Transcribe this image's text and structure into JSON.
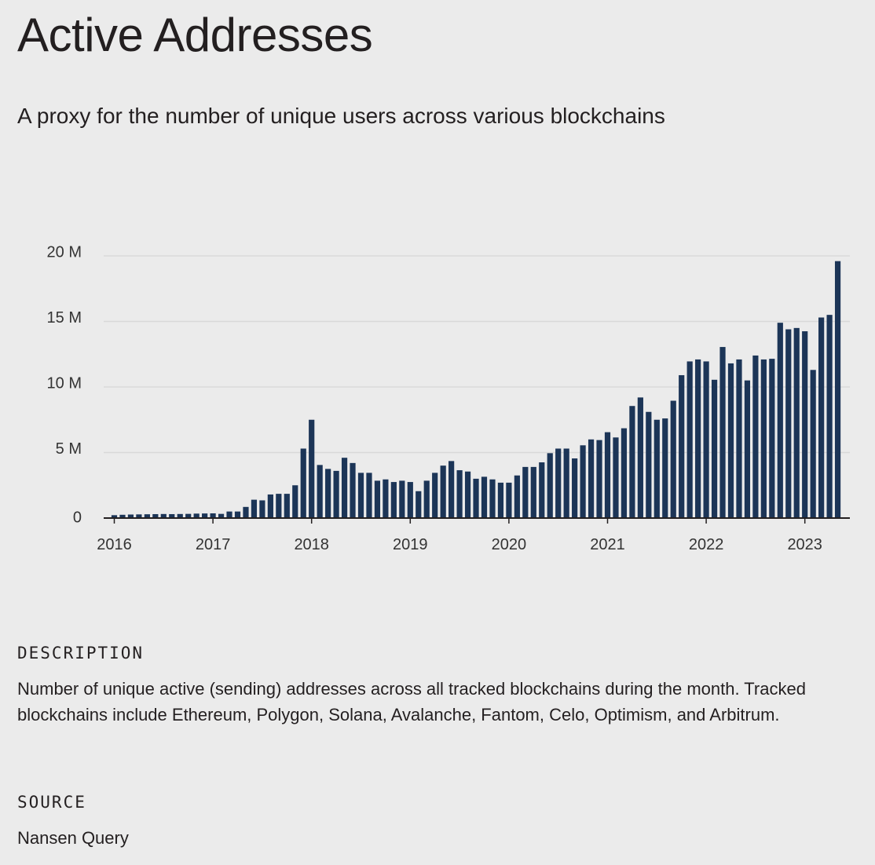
{
  "header": {
    "title": "Active Addresses",
    "subtitle": "A proxy for the number of unique users across various blockchains"
  },
  "chart_data": {
    "type": "bar",
    "title": "Active Addresses",
    "subtitle": "A proxy for the number of unique users across various blockchains",
    "xlabel": "",
    "ylabel": "",
    "bar_color": "#1c3557",
    "grid": true,
    "y_ticks": [
      "0",
      "5 M",
      "10 M",
      "15 M",
      "20 M"
    ],
    "y_tick_values": [
      0,
      5000000,
      10000000,
      15000000,
      20000000
    ],
    "ylim": [
      0,
      20000000
    ],
    "x_ticks": [
      "2016",
      "2017",
      "2018",
      "2019",
      "2020",
      "2021",
      "2022",
      "2023"
    ],
    "x_tick_dates": [
      "2016-01",
      "2017-01",
      "2018-01",
      "2019-01",
      "2020-01",
      "2021-01",
      "2022-01",
      "2023-01"
    ],
    "x_range": [
      "2015-12",
      "2023-06"
    ],
    "categories": [
      "2016-01",
      "2016-02",
      "2016-03",
      "2016-04",
      "2016-05",
      "2016-06",
      "2016-07",
      "2016-08",
      "2016-09",
      "2016-10",
      "2016-11",
      "2016-12",
      "2017-01",
      "2017-02",
      "2017-03",
      "2017-04",
      "2017-05",
      "2017-06",
      "2017-07",
      "2017-08",
      "2017-09",
      "2017-10",
      "2017-11",
      "2017-12",
      "2018-01",
      "2018-02",
      "2018-03",
      "2018-04",
      "2018-05",
      "2018-06",
      "2018-07",
      "2018-08",
      "2018-09",
      "2018-10",
      "2018-11",
      "2018-12",
      "2019-01",
      "2019-02",
      "2019-03",
      "2019-04",
      "2019-05",
      "2019-06",
      "2019-07",
      "2019-08",
      "2019-09",
      "2019-10",
      "2019-11",
      "2019-12",
      "2020-01",
      "2020-02",
      "2020-03",
      "2020-04",
      "2020-05",
      "2020-06",
      "2020-07",
      "2020-08",
      "2020-09",
      "2020-10",
      "2020-11",
      "2020-12",
      "2021-01",
      "2021-02",
      "2021-03",
      "2021-04",
      "2021-05",
      "2021-06",
      "2021-07",
      "2021-08",
      "2021-09",
      "2021-10",
      "2021-11",
      "2021-12",
      "2022-01",
      "2022-02",
      "2022-03",
      "2022-04",
      "2022-05",
      "2022-06",
      "2022-07",
      "2022-08",
      "2022-09",
      "2022-10",
      "2022-11",
      "2022-12",
      "2023-01",
      "2023-02",
      "2023-03",
      "2023-04",
      "2023-05"
    ],
    "values": [
      220000,
      250000,
      270000,
      280000,
      290000,
      300000,
      310000,
      300000,
      310000,
      320000,
      340000,
      350000,
      360000,
      320000,
      500000,
      500000,
      850000,
      1400000,
      1350000,
      1800000,
      1850000,
      1850000,
      2500000,
      5300000,
      7500000,
      4050000,
      3750000,
      3600000,
      4600000,
      4200000,
      3450000,
      3450000,
      2850000,
      2950000,
      2750000,
      2850000,
      2750000,
      2050000,
      2850000,
      3450000,
      4000000,
      4350000,
      3650000,
      3550000,
      3000000,
      3150000,
      2950000,
      2700000,
      2700000,
      3250000,
      3900000,
      3900000,
      4250000,
      4950000,
      5300000,
      5300000,
      4550000,
      5550000,
      6000000,
      5950000,
      6550000,
      6150000,
      6850000,
      8550000,
      9200000,
      8100000,
      7500000,
      7600000,
      8950000,
      10900000,
      11950000,
      12100000,
      11950000,
      10550000,
      13050000,
      11800000,
      12100000,
      10500000,
      12400000,
      12100000,
      12150000,
      14900000,
      14400000,
      14500000,
      14250000,
      11300000,
      15300000,
      15500000,
      19600000
    ]
  },
  "description": {
    "label": "DESCRIPTION",
    "text": "Number of unique active (sending) addresses across all tracked blockchains during the month. Tracked blockchains include Ethereum, Polygon, Solana, Avalanche, Fantom, Celo, Optimism, and Arbitrum."
  },
  "source": {
    "label": "SOURCE",
    "text": "Nansen Query"
  }
}
